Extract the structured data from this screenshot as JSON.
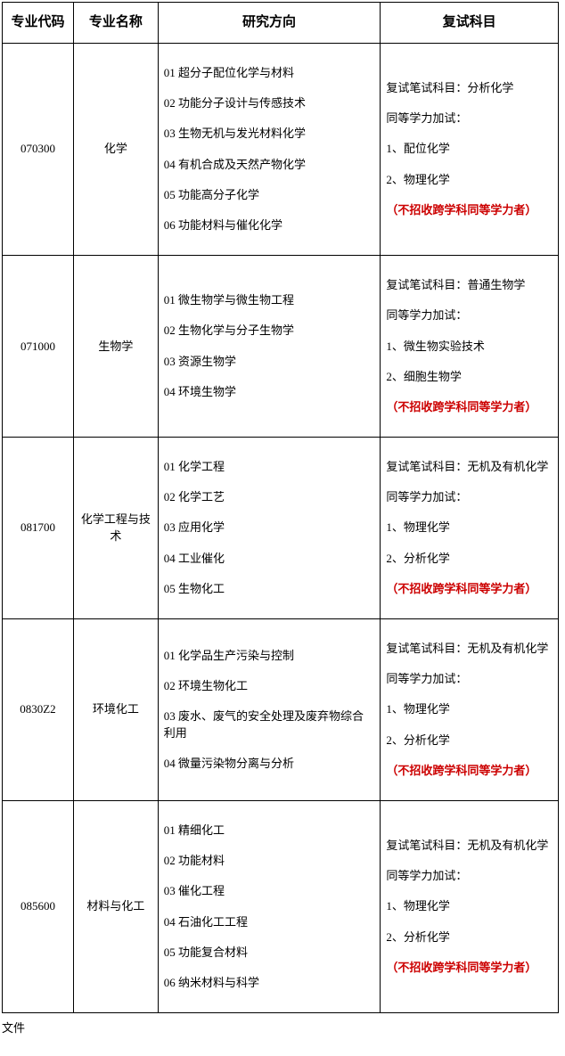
{
  "headers": {
    "code": "专业代码",
    "name": "专业名称",
    "direction": "研究方向",
    "fushi": "复试科目"
  },
  "rows": [
    {
      "code": "070300",
      "name": "化学",
      "directions": [
        "01 超分子配位化学与材料",
        "02 功能分子设计与传感技术",
        "03 生物无机与发光材料化学",
        "04 有机合成及天然产物化学",
        "05 功能高分子化学",
        "06 功能材料与催化化学"
      ],
      "fushi": {
        "written": "复试笔试科目：分析化学",
        "equiv_title": "同等学力加试：",
        "equiv_items": [
          "1、配位化学",
          "2、物理化学"
        ],
        "note": "（不招收跨学科同等学力者）"
      }
    },
    {
      "code": "071000",
      "name": "生物学",
      "directions": [
        "01 微生物学与微生物工程",
        "02 生物化学与分子生物学",
        "03 资源生物学",
        "04 环境生物学"
      ],
      "fushi": {
        "written": "复试笔试科目：普通生物学",
        "equiv_title": "同等学力加试：",
        "equiv_items": [
          "1、微生物实验技术",
          "2、细胞生物学"
        ],
        "note": "（不招收跨学科同等学力者）"
      }
    },
    {
      "code": "081700",
      "name": "化学工程与技术",
      "directions": [
        "01 化学工程",
        "02 化学工艺",
        "03 应用化学",
        "04 工业催化",
        "05 生物化工"
      ],
      "fushi": {
        "written": "复试笔试科目：无机及有机化学",
        "equiv_title": "同等学力加试：",
        "equiv_items": [
          "1、物理化学",
          "2、分析化学"
        ],
        "note": "（不招收跨学科同等学力者）"
      }
    },
    {
      "code": "0830Z2",
      "name": "环境化工",
      "directions": [
        "01 化学品生产污染与控制",
        "02 环境生物化工",
        "03 废水、废气的安全处理及废弃物综合利用",
        "04 微量污染物分离与分析"
      ],
      "fushi": {
        "written": "复试笔试科目：无机及有机化学",
        "equiv_title": "同等学力加试：",
        "equiv_items": [
          "1、物理化学",
          "2、分析化学"
        ],
        "note": "（不招收跨学科同等学力者）"
      }
    },
    {
      "code": "085600",
      "name": "材料与化工",
      "directions": [
        "01 精细化工",
        "02 功能材料",
        "03 催化工程",
        "04 石油化工工程",
        "05 功能复合材料",
        "06 纳米材料与科学"
      ],
      "fushi": {
        "written": "复试笔试科目：无机及有机化学",
        "equiv_title": "同等学力加试：",
        "equiv_items": [
          "1、物理化学",
          "2、分析化学"
        ],
        "note": "（不招收跨学科同等学力者）"
      }
    }
  ],
  "footer_fragment": "文件"
}
